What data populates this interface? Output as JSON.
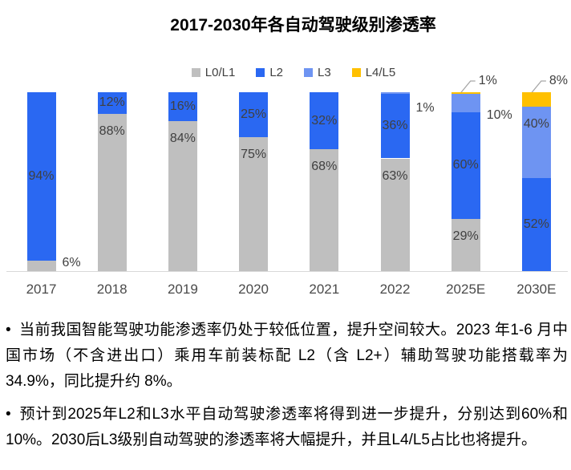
{
  "title": "2017-2030年各自动驾驶级别渗透率",
  "chart_data": {
    "type": "bar",
    "stacked": true,
    "title": "2017-2030年各自动驾驶级别渗透率",
    "value_suffix": "%",
    "ylim": [
      0,
      100
    ],
    "grid": false,
    "legend_position": "top",
    "categories": [
      "2017",
      "2018",
      "2019",
      "2020",
      "2021",
      "2022",
      "2025E",
      "2030E"
    ],
    "series": [
      {
        "name": "L0/L1",
        "color": "#bfbfbf",
        "values": [
          6,
          88,
          84,
          75,
          68,
          63,
          29,
          0
        ],
        "label_placement": [
          "right",
          "top",
          "top",
          "top",
          "top",
          "top",
          "top",
          "none"
        ]
      },
      {
        "name": "L2",
        "color": "#2a68f2",
        "values": [
          94,
          12,
          16,
          25,
          32,
          36,
          60,
          52
        ],
        "label_placement": [
          "center",
          "center",
          "center",
          "center",
          "center",
          "center",
          "center",
          "center"
        ]
      },
      {
        "name": "L3",
        "color": "#6e94f2",
        "values": [
          0,
          0,
          0,
          0,
          0,
          1,
          10,
          40
        ],
        "label_placement": [
          "none",
          "none",
          "none",
          "none",
          "none",
          "right",
          "right",
          "top"
        ]
      },
      {
        "name": "L4/L5",
        "color": "#ffc000",
        "values": [
          0,
          0,
          0,
          0,
          0,
          0,
          1,
          8
        ],
        "label_placement": [
          "none",
          "none",
          "none",
          "none",
          "none",
          "none",
          "callout",
          "callout"
        ]
      }
    ],
    "colors": {
      "axis_line": "#d9d9d9",
      "label_text": "#404040",
      "category_text": "#4a4a4a",
      "leader_line": "#a6a6a6"
    }
  },
  "bullets": [
    {
      "marker": "•",
      "text": "当前我国智能驾驶功能渗透率仍处于较低位置，提升空间较大。2023 年1-6 月中国市场（不含进出口）乘用车前装标配 L2（含 L2+）辅助驾驶功能搭载率为 34.9%，同比提升约 8%。"
    },
    {
      "marker": "•",
      "text": "预计到2025年L2和L3水平自动驾驶渗透率将得到进一步提升，分别达到60%和10%。2030后L3级别自动驾驶的渗透率将大幅提升，并且L4/L5占比也将提升。"
    }
  ]
}
